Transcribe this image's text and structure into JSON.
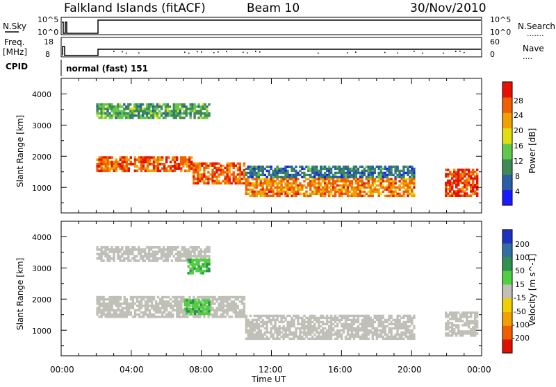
{
  "header": {
    "station": "Falkland Islands (fitACF)",
    "beam": "Beam 10",
    "date": "30/Nov/2010"
  },
  "strips": {
    "nsky_label": "N.Sky",
    "nsky_hi": "10^5",
    "nsky_lo": "10^0",
    "nsearch_label": "N.Search",
    "nsearch_hi": "10^5",
    "nsearch_lo": "10^0",
    "freq_label": "Freq.",
    "freq_unit": "[MHz]",
    "freq_hi": "18",
    "freq_lo": "8",
    "nave_label": "Nave",
    "nave_hi": "60",
    "nave_lo": "0",
    "cpid_label": "CPID",
    "cpid_value": "normal (fast) 151"
  },
  "axes": {
    "ylabel": "Slant Range [km]",
    "xlabel": "Time UT",
    "yticks": [
      "1000",
      "2000",
      "3000",
      "4000"
    ],
    "xticks": [
      "00:00",
      "04:00",
      "08:00",
      "12:00",
      "16:00",
      "20:00",
      "00:00"
    ]
  },
  "power_scale": {
    "label": "Power [dB]",
    "ticks": [
      "4",
      "8",
      "12",
      "16",
      "20",
      "24",
      "28"
    ],
    "colors": [
      "#1a1aff",
      "#2a5fa8",
      "#3d8a55",
      "#62c84a",
      "#e0e010",
      "#f0a000",
      "#f06000",
      "#e81000"
    ]
  },
  "velocity_scale": {
    "label": "Velocity [m s^-1]",
    "ticks": [
      "200",
      "100",
      "50",
      "15",
      "-15",
      "-50",
      "-100",
      "-200"
    ],
    "colors": [
      "#2030c0",
      "#3070a0",
      "#309050",
      "#50d040",
      "#c0c0b8",
      "#f0d000",
      "#f0a000",
      "#f06000",
      "#e01000"
    ]
  },
  "chart_data": [
    {
      "type": "heatmap",
      "title": "Power",
      "xlabel": "Time UT",
      "ylabel": "Slant Range [km]",
      "xlim": [
        0,
        24
      ],
      "ylim": [
        180,
        4500
      ],
      "colorbar_label": "Power [dB]",
      "colorbar_ticks": [
        4,
        8,
        12,
        16,
        20,
        24,
        28
      ],
      "regions": [
        {
          "start_hours": 2.0,
          "end_hours": 7.5,
          "range_km": [
            1500,
            2000
          ],
          "power_db": 26
        },
        {
          "start_hours": 7.5,
          "end_hours": 10.5,
          "range_km": [
            1100,
            1800
          ],
          "power_db": 26
        },
        {
          "start_hours": 10.5,
          "end_hours": 20.2,
          "range_km": [
            700,
            1300
          ],
          "power_db": 24
        },
        {
          "start_hours": 2.0,
          "end_hours": 8.5,
          "range_km": [
            3200,
            3700
          ],
          "power_db": 12
        },
        {
          "start_hours": 10.5,
          "end_hours": 20.2,
          "range_km": [
            1300,
            1700
          ],
          "power_db": 8
        },
        {
          "start_hours": 21.9,
          "end_hours": 23.8,
          "range_km": [
            700,
            1600
          ],
          "power_db": 28
        }
      ]
    },
    {
      "type": "heatmap",
      "title": "Velocity",
      "xlabel": "Time UT",
      "ylabel": "Slant Range [km]",
      "xlim": [
        0,
        24
      ],
      "ylim": [
        180,
        4500
      ],
      "colorbar_label": "Velocity [m s^-1]",
      "colorbar_ticks": [
        200,
        100,
        50,
        15,
        -15,
        -50,
        -100,
        -200
      ],
      "regions": [
        {
          "start_hours": 2.0,
          "end_hours": 10.5,
          "range_km": [
            1400,
            2100
          ],
          "velocity_ms": 0
        },
        {
          "start_hours": 2.0,
          "end_hours": 8.5,
          "range_km": [
            3200,
            3700
          ],
          "velocity_ms": 0
        },
        {
          "start_hours": 7.0,
          "end_hours": 8.5,
          "range_km": [
            1500,
            2000
          ],
          "velocity_ms": 30
        },
        {
          "start_hours": 7.2,
          "end_hours": 8.5,
          "range_km": [
            2800,
            3300
          ],
          "velocity_ms": 30
        },
        {
          "start_hours": 10.5,
          "end_hours": 20.2,
          "range_km": [
            700,
            1500
          ],
          "velocity_ms": 0
        },
        {
          "start_hours": 21.9,
          "end_hours": 23.8,
          "range_km": [
            800,
            1600
          ],
          "velocity_ms": 0
        }
      ]
    }
  ]
}
